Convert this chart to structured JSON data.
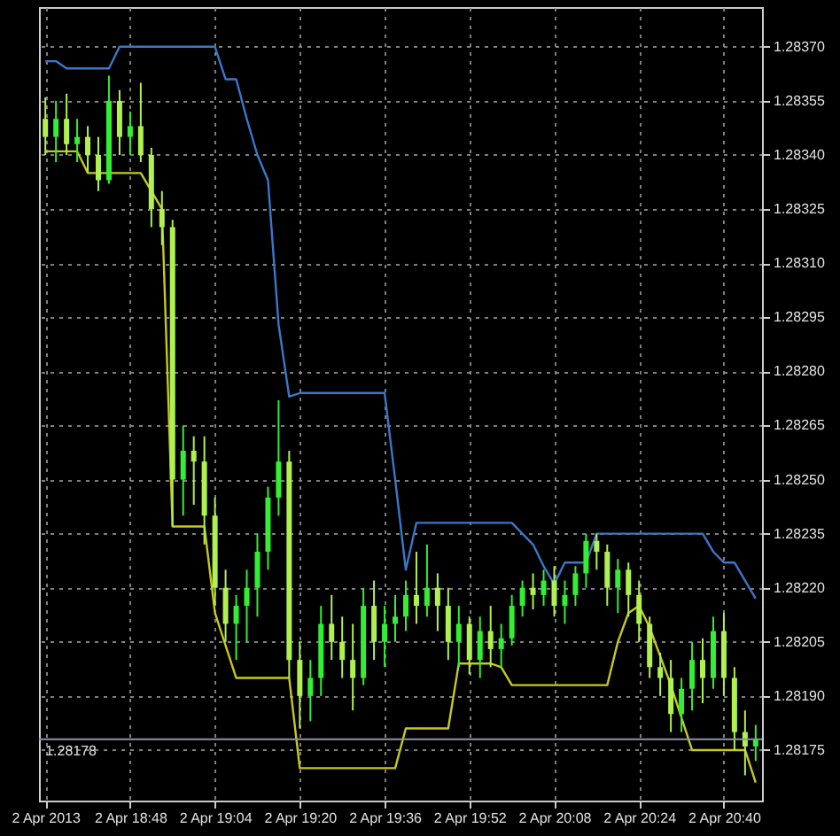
{
  "chart_data": {
    "type": "candlestick",
    "colors": [
      "#b0f050",
      "#33ee33",
      "#b0f050",
      "#33ee33",
      "#b0f050",
      "#b0f050",
      "#33ee33",
      "#b0f050",
      "#33ee33",
      "#b0f050",
      "#b0f050",
      "#b0f050",
      "#b0f050",
      "#33ee33",
      "#b0f050",
      "#b0f050",
      "#b0f050",
      "#b0f050",
      "#33ee33",
      "#33ee33",
      "#33ee33",
      "#33ee33",
      "#33ee33",
      "#b0f050",
      "#b0f050",
      "#33ee33",
      "#33ee33",
      "#b0f050",
      "#b0f050",
      "#b0f050",
      "#33ee33",
      "#b0f050",
      "#33ee33",
      "#33ee33",
      "#33ee33",
      "#b0f050",
      "#33ee33",
      "#b0f050",
      "#b0f050",
      "#33ee33",
      "#b0f050",
      "#33ee33",
      "#b0f050",
      "#33ee33",
      "#33ee33",
      "#33ee33",
      "#b0f050",
      "#33ee33",
      "#b0f050",
      "#33ee33",
      "#33ee33",
      "#33ee33",
      "#b0f050",
      "#b0f050",
      "#33ee33",
      "#b0f050",
      "#b0f050",
      "#b0f050",
      "#b0f050",
      "#b0f050",
      "#33ee33",
      "#33ee33",
      "#b0f050",
      "#33ee33",
      "#b0f050",
      "#b0f050",
      "#b0f050",
      "#33ee33"
    ],
    "categories": [
      "2 Apr 2013",
      null,
      null,
      null,
      null,
      null,
      null,
      null,
      "2 Apr 18:48",
      null,
      null,
      null,
      null,
      null,
      null,
      null,
      "2 Apr 19:04",
      null,
      null,
      null,
      null,
      null,
      null,
      null,
      "2 Apr 19:20",
      null,
      null,
      null,
      null,
      null,
      null,
      null,
      "2 Apr 19:36",
      null,
      null,
      null,
      null,
      null,
      null,
      null,
      "2 Apr 19:52",
      null,
      null,
      null,
      null,
      null,
      null,
      null,
      "2 Apr 20:08",
      null,
      null,
      null,
      null,
      null,
      null,
      null,
      "2 Apr 20:24",
      null,
      null,
      null,
      null,
      null,
      null,
      null,
      "2 Apr 20:40",
      null,
      null,
      null
    ],
    "ohlc": [
      [
        1.2835,
        1.28356,
        1.2834,
        1.28345
      ],
      [
        1.28345,
        1.28355,
        1.28338,
        1.2835
      ],
      [
        1.2835,
        1.28357,
        1.2834,
        1.28343
      ],
      [
        1.28343,
        1.2835,
        1.28338,
        1.28345
      ],
      [
        1.28345,
        1.28348,
        1.28335,
        1.2834
      ],
      [
        1.2834,
        1.28345,
        1.2833,
        1.28333
      ],
      [
        1.28333,
        1.28362,
        1.28332,
        1.28355
      ],
      [
        1.28355,
        1.28358,
        1.2834,
        1.28345
      ],
      [
        1.28345,
        1.28352,
        1.2834,
        1.28348
      ],
      [
        1.28348,
        1.2836,
        1.28338,
        1.2834
      ],
      [
        1.2834,
        1.28342,
        1.2832,
        1.28325
      ],
      [
        1.28325,
        1.2833,
        1.28315,
        1.2832
      ],
      [
        1.2832,
        1.28322,
        1.28237,
        1.2825
      ],
      [
        1.2825,
        1.28265,
        1.2824,
        1.28258
      ],
      [
        1.28258,
        1.28262,
        1.28243,
        1.28255
      ],
      [
        1.28255,
        1.28262,
        1.28232,
        1.2824
      ],
      [
        1.2824,
        1.28245,
        1.28215,
        1.2822
      ],
      [
        1.2822,
        1.28225,
        1.28205,
        1.2821
      ],
      [
        1.2821,
        1.28218,
        1.282,
        1.28215
      ],
      [
        1.28215,
        1.28225,
        1.28205,
        1.2822
      ],
      [
        1.2822,
        1.28235,
        1.28212,
        1.2823
      ],
      [
        1.2823,
        1.28248,
        1.28225,
        1.28245
      ],
      [
        1.28245,
        1.28272,
        1.2824,
        1.28255
      ],
      [
        1.28255,
        1.28258,
        1.28195,
        1.282
      ],
      [
        1.282,
        1.28205,
        1.28181,
        1.2819
      ],
      [
        1.2819,
        1.282,
        1.28183,
        1.28195
      ],
      [
        1.28195,
        1.28215,
        1.2819,
        1.2821
      ],
      [
        1.2821,
        1.28218,
        1.282,
        1.28205
      ],
      [
        1.28205,
        1.28212,
        1.28195,
        1.282
      ],
      [
        1.282,
        1.2821,
        1.28186,
        1.28195
      ],
      [
        1.28195,
        1.2822,
        1.28193,
        1.28215
      ],
      [
        1.28215,
        1.28222,
        1.282,
        1.28205
      ],
      [
        1.28205,
        1.28215,
        1.28198,
        1.2821
      ],
      [
        1.2821,
        1.28218,
        1.28205,
        1.28212
      ],
      [
        1.28212,
        1.28222,
        1.28208,
        1.28218
      ],
      [
        1.28218,
        1.2823,
        1.2821,
        1.28215
      ],
      [
        1.28215,
        1.28232,
        1.28212,
        1.2822
      ],
      [
        1.2822,
        1.28224,
        1.28208,
        1.28215
      ],
      [
        1.28215,
        1.2822,
        1.282,
        1.28205
      ],
      [
        1.28205,
        1.28215,
        1.28198,
        1.2821
      ],
      [
        1.2821,
        1.28212,
        1.28196,
        1.282
      ],
      [
        1.282,
        1.28212,
        1.28195,
        1.28208
      ],
      [
        1.28208,
        1.28215,
        1.28198,
        1.28203
      ],
      [
        1.28203,
        1.2821,
        1.28198,
        1.28206
      ],
      [
        1.28206,
        1.28218,
        1.28204,
        1.28215
      ],
      [
        1.28215,
        1.28222,
        1.28212,
        1.2822
      ],
      [
        1.2822,
        1.28224,
        1.28214,
        1.28218
      ],
      [
        1.28218,
        1.28225,
        1.28215,
        1.28222
      ],
      [
        1.28222,
        1.28226,
        1.28212,
        1.28215
      ],
      [
        1.28215,
        1.28222,
        1.2821,
        1.28218
      ],
      [
        1.28218,
        1.28226,
        1.28215,
        1.28224
      ],
      [
        1.28224,
        1.28235,
        1.2822,
        1.28233
      ],
      [
        1.28233,
        1.28235,
        1.28225,
        1.2823
      ],
      [
        1.2823,
        1.28232,
        1.28215,
        1.2822
      ],
      [
        1.2822,
        1.28228,
        1.28213,
        1.28225
      ],
      [
        1.28225,
        1.28227,
        1.28212,
        1.28218
      ],
      [
        1.28218,
        1.28222,
        1.28205,
        1.2821
      ],
      [
        1.2821,
        1.28212,
        1.28195,
        1.28198
      ],
      [
        1.28198,
        1.28202,
        1.2819,
        1.28195
      ],
      [
        1.28195,
        1.282,
        1.2818,
        1.28185
      ],
      [
        1.28185,
        1.28195,
        1.2818,
        1.28192
      ],
      [
        1.28192,
        1.28205,
        1.28186,
        1.282
      ],
      [
        1.282,
        1.28206,
        1.28188,
        1.28195
      ],
      [
        1.28195,
        1.28212,
        1.28192,
        1.28208
      ],
      [
        1.28208,
        1.28213,
        1.2819,
        1.28195
      ],
      [
        1.28195,
        1.28198,
        1.28175,
        1.2818
      ],
      [
        1.2818,
        1.28186,
        1.28168,
        1.28176
      ],
      [
        1.28176,
        1.28182,
        1.28172,
        1.28178
      ]
    ],
    "series": [
      {
        "type": "line",
        "color": "#3a78c9",
        "values": [
          1.28366,
          1.28366,
          1.28364,
          1.28364,
          1.28364,
          1.28364,
          1.28364,
          1.2837,
          1.2837,
          1.2837,
          1.2837,
          1.2837,
          1.2837,
          1.2837,
          1.2837,
          1.2837,
          1.2837,
          1.28361,
          1.28361,
          1.2835,
          1.2834,
          1.28333,
          1.28293,
          1.28273,
          1.28274,
          1.28274,
          1.28274,
          1.28274,
          1.28274,
          1.28274,
          1.28274,
          1.28274,
          1.28274,
          1.2825,
          1.28225,
          1.28238,
          1.28238,
          1.28238,
          1.28238,
          1.28238,
          1.28238,
          1.28238,
          1.28238,
          1.28238,
          1.28238,
          1.28235,
          1.28232,
          1.28226,
          1.28221,
          1.28227,
          1.28227,
          1.28227,
          1.28235,
          1.28235,
          1.28235,
          1.28235,
          1.28235,
          1.28235,
          1.28235,
          1.28235,
          1.28235,
          1.28235,
          1.28235,
          1.2823,
          1.28227,
          1.28227,
          1.28222,
          1.28217
        ]
      },
      {
        "type": "line",
        "color": "#c8c81e",
        "values": [
          1.28341,
          1.28341,
          1.28341,
          1.28341,
          1.28335,
          1.28335,
          1.28335,
          1.28335,
          1.28335,
          1.28335,
          1.2833,
          1.28325,
          1.28237,
          1.28237,
          1.28237,
          1.28237,
          1.28213,
          1.28204,
          1.28195,
          1.28195,
          1.28195,
          1.28195,
          1.28195,
          1.28195,
          1.2817,
          1.2817,
          1.2817,
          1.2817,
          1.2817,
          1.2817,
          1.2817,
          1.2817,
          1.2817,
          1.2817,
          1.28181,
          1.28181,
          1.28181,
          1.28181,
          1.28181,
          1.28199,
          1.28199,
          1.28199,
          1.28199,
          1.28198,
          1.28193,
          1.28193,
          1.28193,
          1.28193,
          1.28193,
          1.28193,
          1.28193,
          1.28193,
          1.28193,
          1.28193,
          1.28205,
          1.28213,
          1.28215,
          1.28209,
          1.28201,
          1.28193,
          1.28184,
          1.28175,
          1.28175,
          1.28175,
          1.28175,
          1.28175,
          1.28175,
          1.28166
        ]
      }
    ],
    "ref_lines": [
      {
        "axis": "y",
        "value": 1.28178,
        "label": "1.28178",
        "color": "#8a96a8"
      }
    ],
    "ylim": [
      1.28161,
      1.28381
    ],
    "yticks": [
      {
        "value": 1.28175,
        "label": "1.28175"
      },
      {
        "value": 1.2819,
        "label": "1.28190"
      },
      {
        "value": 1.28205,
        "label": "1.28205"
      },
      {
        "value": 1.2822,
        "label": "1.28220"
      },
      {
        "value": 1.28235,
        "label": "1.28235"
      },
      {
        "value": 1.2825,
        "label": "1.28250"
      },
      {
        "value": 1.28265,
        "label": "1.28265"
      },
      {
        "value": 1.2828,
        "label": "1.28280"
      },
      {
        "value": 1.28295,
        "label": "1.28295"
      },
      {
        "value": 1.2831,
        "label": "1.28310"
      },
      {
        "value": 1.28325,
        "label": "1.28325"
      },
      {
        "value": 1.2834,
        "label": "1.28340"
      },
      {
        "value": 1.28355,
        "label": "1.28355"
      },
      {
        "value": 1.2837,
        "label": "1.28370"
      }
    ],
    "grid": true
  }
}
